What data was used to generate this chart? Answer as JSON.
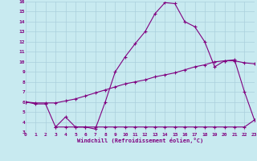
{
  "xlabel": "Windchill (Refroidissement éolien,°C)",
  "bg_color": "#c8eaf0",
  "grid_color": "#aad0dc",
  "line_color": "#800080",
  "line1_x": [
    0,
    1,
    2,
    3,
    4,
    5,
    6,
    7,
    8,
    9,
    10,
    11,
    12,
    13,
    14,
    15,
    16,
    17,
    18,
    19,
    20,
    21,
    22,
    23
  ],
  "line1_y": [
    6.0,
    5.8,
    5.8,
    3.5,
    4.5,
    3.5,
    3.5,
    3.3,
    6.0,
    9.0,
    10.5,
    11.8,
    13.0,
    14.8,
    15.9,
    15.8,
    14.0,
    13.5,
    12.0,
    9.5,
    10.1,
    10.2,
    7.0,
    4.2
  ],
  "line2_x": [
    0,
    1,
    2,
    3,
    4,
    5,
    6,
    7,
    8,
    9,
    10,
    11,
    12,
    13,
    14,
    15,
    16,
    17,
    18,
    19,
    20,
    21,
    22,
    23
  ],
  "line2_y": [
    6.0,
    5.9,
    5.9,
    5.9,
    6.1,
    6.3,
    6.6,
    6.9,
    7.2,
    7.5,
    7.8,
    8.0,
    8.2,
    8.5,
    8.7,
    8.9,
    9.2,
    9.5,
    9.7,
    10.0,
    10.1,
    10.1,
    9.9,
    9.8
  ],
  "line3_x": [
    3,
    4,
    5,
    6,
    7,
    8,
    9,
    10,
    11,
    12,
    13,
    14,
    15,
    16,
    17,
    18,
    19,
    20,
    21,
    22,
    23
  ],
  "line3_y": [
    3.5,
    3.5,
    3.5,
    3.5,
    3.5,
    3.5,
    3.5,
    3.5,
    3.5,
    3.5,
    3.5,
    3.5,
    3.5,
    3.5,
    3.5,
    3.5,
    3.5,
    3.5,
    3.5,
    3.5,
    4.2
  ],
  "xlim": [
    0,
    23
  ],
  "ylim": [
    3,
    16
  ],
  "xticks": [
    0,
    1,
    2,
    3,
    4,
    5,
    6,
    7,
    8,
    9,
    10,
    11,
    12,
    13,
    14,
    15,
    16,
    17,
    18,
    19,
    20,
    21,
    22,
    23
  ],
  "yticks": [
    3,
    4,
    5,
    6,
    7,
    8,
    9,
    10,
    11,
    12,
    13,
    14,
    15,
    16
  ]
}
